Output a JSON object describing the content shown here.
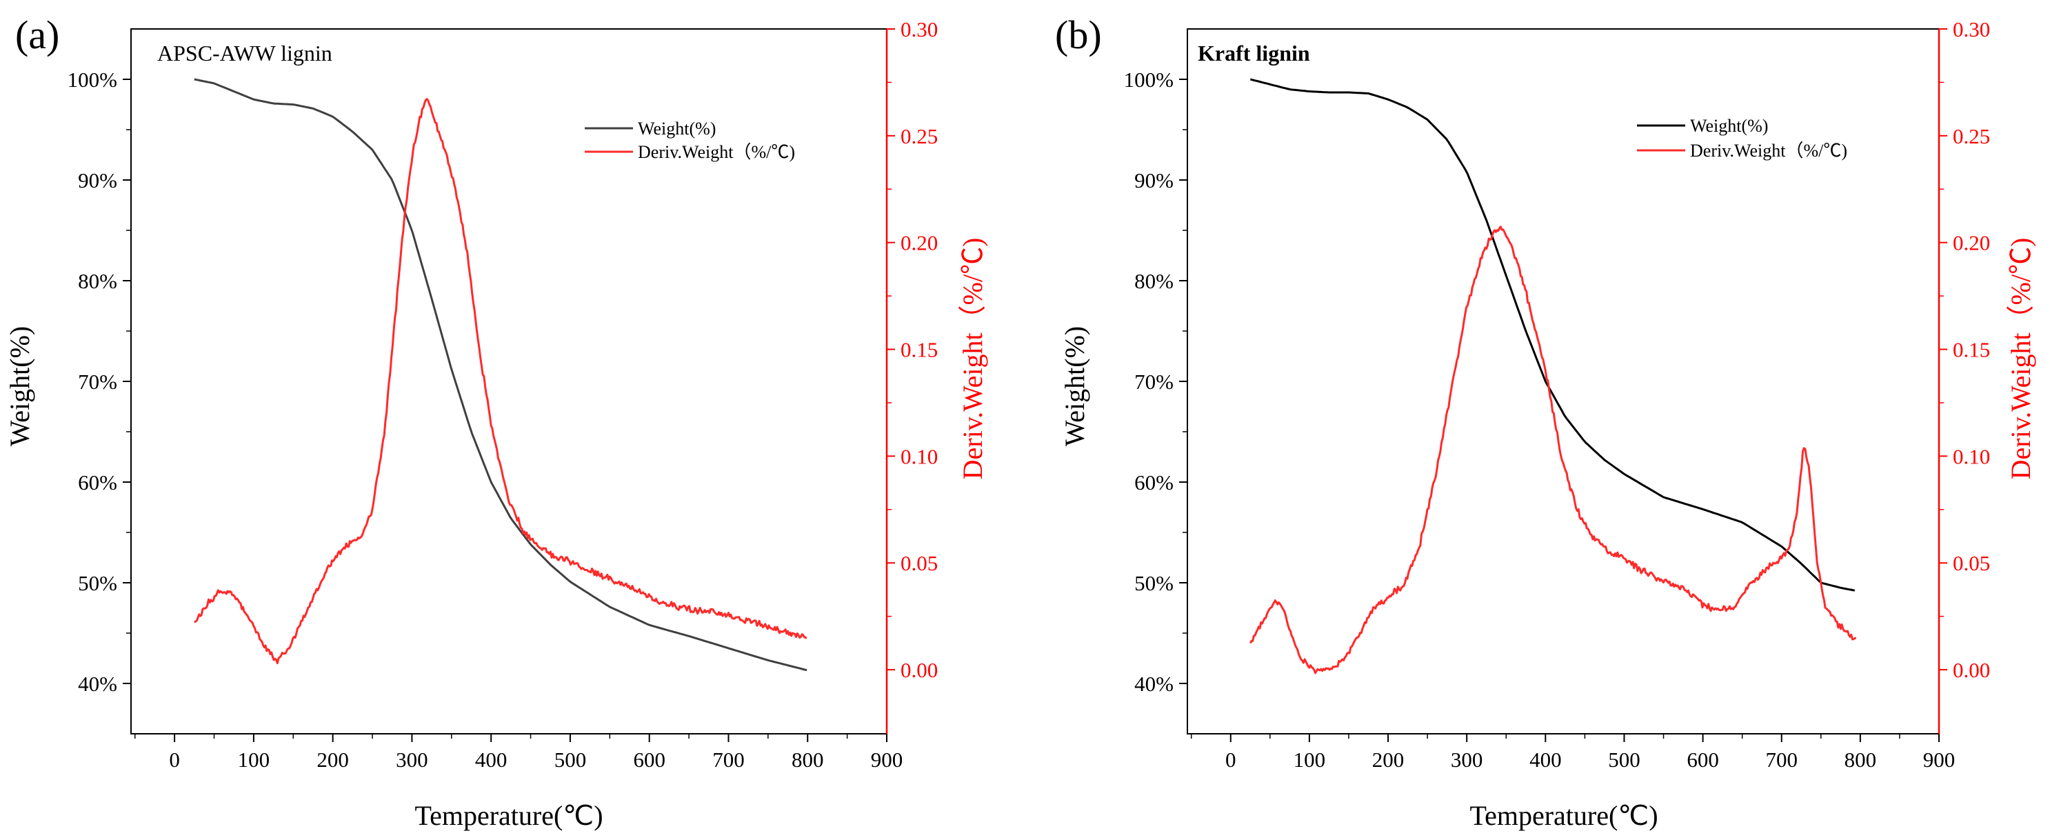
{
  "chart_data": [
    {
      "panel": "(a)",
      "type": "line",
      "title": "APSC-AWW lignin",
      "xlabel": "Temperature(℃)",
      "ylabel": "Weight(%)",
      "y2label": "Deriv.Weight（%/℃)",
      "xlim": [
        -55,
        900
      ],
      "ylim": [
        35,
        105
      ],
      "y2lim": [
        -0.03,
        0.3
      ],
      "xticks": [
        "0",
        "100",
        "200",
        "300",
        "400",
        "500",
        "600",
        "700",
        "800",
        "900"
      ],
      "yticks": [
        "40%",
        "50%",
        "60%",
        "70%",
        "80%",
        "90%",
        "100%"
      ],
      "y2ticks": [
        "0.00",
        "0.05",
        "0.10",
        "0.15",
        "0.20",
        "0.25",
        "0.30"
      ],
      "series": [
        {
          "name": "Weight(%)",
          "axis": "left",
          "color": "#404040",
          "x": [
            25,
            50,
            75,
            100,
            125,
            150,
            175,
            200,
            225,
            250,
            275,
            300,
            325,
            350,
            375,
            400,
            425,
            450,
            475,
            500,
            550,
            600,
            650,
            700,
            750,
            800
          ],
          "y": [
            100,
            99.6,
            98.8,
            98.0,
            97.6,
            97.5,
            97.1,
            96.3,
            94.8,
            93.0,
            90.0,
            85.0,
            78.2,
            71.2,
            65.0,
            60.0,
            56.4,
            53.8,
            51.8,
            50.1,
            47.6,
            45.8,
            44.7,
            43.5,
            42.3,
            41.3
          ]
        },
        {
          "name": "Deriv.Weight（%/℃)",
          "axis": "right",
          "color": "#ff2a2a",
          "noise": 0.0012,
          "x": [
            25,
            40,
            55,
            70,
            85,
            100,
            115,
            130,
            145,
            160,
            175,
            190,
            205,
            220,
            235,
            250,
            265,
            280,
            290,
            300,
            310,
            318,
            325,
            340,
            355,
            370,
            385,
            400,
            420,
            440,
            460,
            480,
            500,
            520,
            540,
            560,
            580,
            600,
            620,
            650,
            680,
            700,
            720,
            740,
            760,
            780,
            800
          ],
          "y": [
            0.022,
            0.03,
            0.036,
            0.037,
            0.03,
            0.02,
            0.01,
            0.004,
            0.01,
            0.022,
            0.034,
            0.045,
            0.054,
            0.059,
            0.062,
            0.075,
            0.11,
            0.17,
            0.21,
            0.24,
            0.258,
            0.268,
            0.262,
            0.245,
            0.225,
            0.195,
            0.15,
            0.115,
            0.082,
            0.065,
            0.058,
            0.053,
            0.051,
            0.047,
            0.044,
            0.041,
            0.038,
            0.034,
            0.031,
            0.028,
            0.027,
            0.025,
            0.023,
            0.021,
            0.019,
            0.017,
            0.015
          ]
        }
      ]
    },
    {
      "panel": "(b)",
      "type": "line",
      "title": "Kraft lignin",
      "xlabel": "Temperature(℃)",
      "ylabel": "Weight(%)",
      "y2label": "Deriv.Weight（%/℃)",
      "xlim": [
        -55,
        900
      ],
      "ylim": [
        35,
        105
      ],
      "y2lim": [
        -0.03,
        0.3
      ],
      "xticks": [
        "0",
        "100",
        "200",
        "300",
        "400",
        "500",
        "600",
        "700",
        "800",
        "900"
      ],
      "yticks": [
        "40%",
        "50%",
        "60%",
        "70%",
        "80%",
        "90%",
        "100%"
      ],
      "y2ticks": [
        "0.00",
        "0.05",
        "0.10",
        "0.15",
        "0.20",
        "0.25",
        "0.30"
      ],
      "series": [
        {
          "name": "Weight(%)",
          "axis": "left",
          "color": "#000000",
          "x": [
            25,
            50,
            75,
            100,
            125,
            150,
            175,
            200,
            225,
            250,
            275,
            300,
            325,
            350,
            375,
            400,
            425,
            450,
            475,
            500,
            550,
            600,
            650,
            700,
            725,
            750,
            775,
            795
          ],
          "y": [
            100,
            99.5,
            99.0,
            98.8,
            98.7,
            98.7,
            98.6,
            98.0,
            97.2,
            96.0,
            94.0,
            90.8,
            86.0,
            80.5,
            75.0,
            70.0,
            66.5,
            64.0,
            62.2,
            60.8,
            58.5,
            57.3,
            56.0,
            53.6,
            51.9,
            50.0,
            49.5,
            49.2
          ]
        },
        {
          "name": "Deriv.Weight（%/℃)",
          "axis": "right",
          "color": "#ff2a2a",
          "noise": 0.0012,
          "x": [
            25,
            40,
            55,
            65,
            75,
            90,
            105,
            120,
            135,
            150,
            165,
            180,
            200,
            220,
            240,
            260,
            280,
            300,
            320,
            335,
            345,
            355,
            365,
            380,
            400,
            420,
            440,
            460,
            480,
            500,
            520,
            540,
            560,
            580,
            600,
            620,
            640,
            660,
            680,
            700,
            710,
            720,
            728,
            735,
            745,
            755,
            770,
            795
          ],
          "y": [
            0.012,
            0.022,
            0.032,
            0.03,
            0.018,
            0.005,
            0.0,
            0.0,
            0.002,
            0.008,
            0.018,
            0.028,
            0.034,
            0.04,
            0.058,
            0.09,
            0.13,
            0.17,
            0.195,
            0.205,
            0.207,
            0.2,
            0.19,
            0.17,
            0.14,
            0.1,
            0.075,
            0.062,
            0.056,
            0.052,
            0.047,
            0.043,
            0.04,
            0.037,
            0.03,
            0.028,
            0.029,
            0.04,
            0.047,
            0.052,
            0.058,
            0.075,
            0.105,
            0.095,
            0.05,
            0.03,
            0.022,
            0.014
          ]
        }
      ]
    }
  ]
}
